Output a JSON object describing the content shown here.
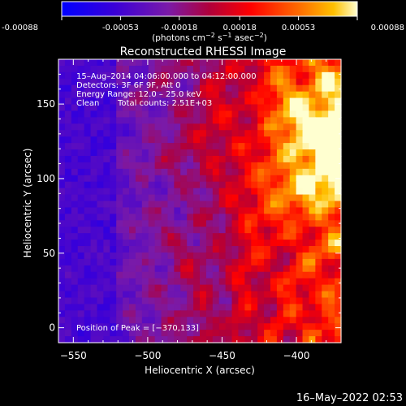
{
  "colorbar": {
    "ticks": [
      "-0.00088",
      "-0.00053",
      "-0.00018",
      "0.00018",
      "0.00053",
      "0.00088"
    ],
    "tick_values": [
      -0.00088,
      -0.00053,
      -0.00018,
      0.00018,
      0.00053,
      0.00088
    ],
    "range": [
      -0.00088,
      0.00088
    ],
    "colors": [
      "#0000ff",
      "#3a00d8",
      "#7a1aa8",
      "#b0003a",
      "#ff0000",
      "#ff6a00",
      "#ffc000",
      "#ffffd0"
    ]
  },
  "chart_data": {
    "type": "heatmap",
    "title": "Reconstructed RHESSI Image",
    "xlabel": "Heliocentric X (arcsec)",
    "ylabel": "Heliocentric Y (arcsec)",
    "x_ticks": [
      -550,
      -500,
      -450,
      -400
    ],
    "x_tick_labels": [
      "−550",
      "−500",
      "−450",
      "−400"
    ],
    "y_ticks": [
      0,
      50,
      100,
      150
    ],
    "y_tick_labels": [
      "0",
      "50",
      "100",
      "150"
    ],
    "xlim": [
      -560,
      -370
    ],
    "ylim": [
      -10,
      180
    ],
    "peak": [
      -370,
      133
    ],
    "annotations": {
      "time": "15–Aug–2014 04:06:00.000 to 04:12:00.000",
      "detectors": "Detectors: 3F 6F 9F, Att 0",
      "energy": "Energy Range: 12.0 – 25.0 keV",
      "clean": "Clean",
      "counts": "Total counts: 2.51E+03",
      "peak": "Position of Peak = [−370,133]"
    }
  },
  "footer": {
    "timestamp": "16–May–2022 02:53"
  }
}
